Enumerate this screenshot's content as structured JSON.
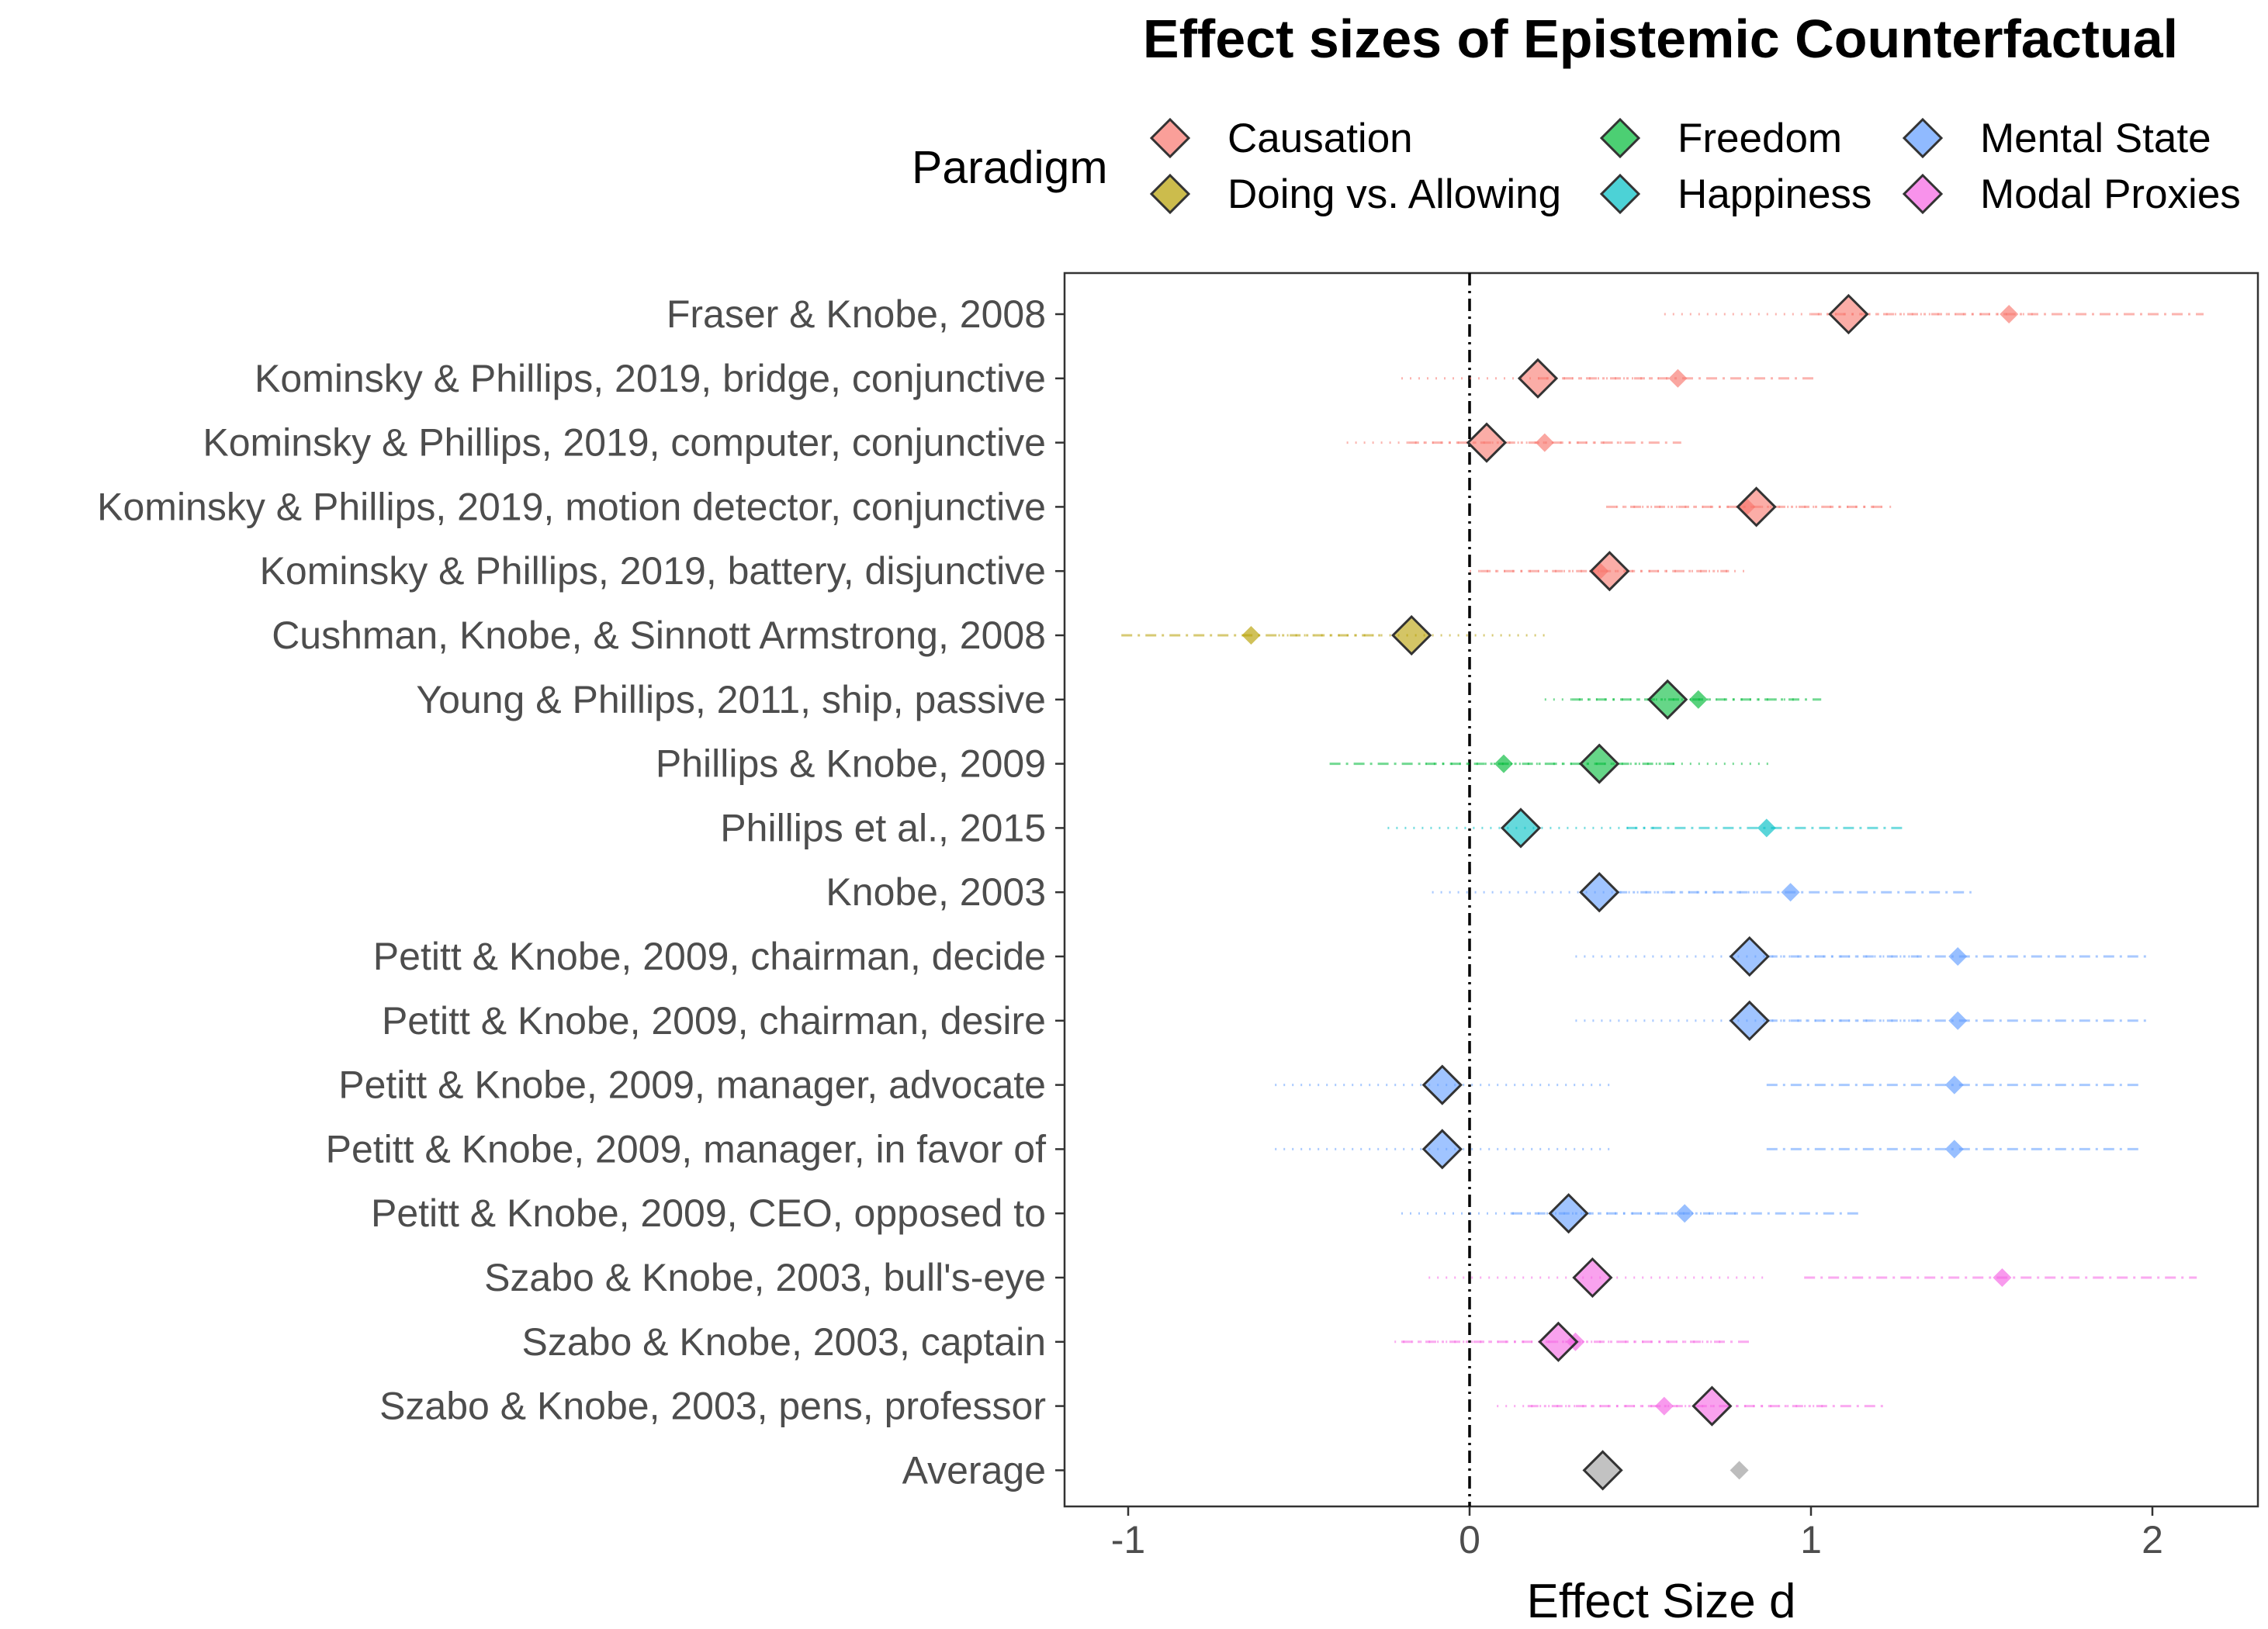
{
  "chart_data": {
    "type": "forest",
    "title": "Effect sizes of Epistemic Counterfactual",
    "xlabel": "Effect Size d",
    "ylabel": "",
    "xlim": [
      -1.15,
      2.3
    ],
    "xticks": [
      -1,
      0,
      1,
      2
    ],
    "xtick_labels": [
      "-1",
      "0",
      "1",
      "2"
    ],
    "reference_line": 0,
    "grid": false,
    "legend": {
      "title": "Paradigm",
      "position": "top",
      "entries": [
        {
          "label": "Causation",
          "color": "#F8766D"
        },
        {
          "label": "Doing vs. Allowing",
          "color": "#B79F00"
        },
        {
          "label": "Freedom",
          "color": "#00BA38"
        },
        {
          "label": "Happiness",
          "color": "#00BFC4"
        },
        {
          "label": "Mental State",
          "color": "#619CFF"
        },
        {
          "label": "Modal Proxies",
          "color": "#F564E3"
        }
      ]
    },
    "marker_legend": {
      "large_outlined_diamond": "epistemic counterfactual estimate (dotted CI)",
      "small_diamond": "comparison estimate (dash-dot CI)"
    },
    "rows": [
      {
        "label": "Fraser & Knobe, 2008",
        "paradigm": "Causation",
        "main": {
          "d": 1.11,
          "ci": [
            0.57,
            1.65
          ]
        },
        "secondary": {
          "d": 1.58,
          "ci": [
            1.0,
            2.15
          ]
        }
      },
      {
        "label": "Kominsky & Phillips, 2019, bridge, conjunctive",
        "paradigm": "Causation",
        "main": {
          "d": 0.2,
          "ci": [
            -0.2,
            0.6
          ]
        },
        "secondary": {
          "d": 0.61,
          "ci": [
            0.2,
            1.01
          ]
        }
      },
      {
        "label": "Kominsky & Phillips, 2019, computer, conjunctive",
        "paradigm": "Causation",
        "main": {
          "d": 0.05,
          "ci": [
            -0.36,
            0.46
          ]
        },
        "secondary": {
          "d": 0.22,
          "ci": [
            -0.18,
            0.62
          ]
        }
      },
      {
        "label": "Kominsky & Phillips, 2019, motion detector, conjunctive",
        "paradigm": "Causation",
        "main": {
          "d": 0.84,
          "ci": [
            0.43,
            1.25
          ]
        },
        "secondary": {
          "d": 0.81,
          "ci": [
            0.4,
            1.22
          ]
        }
      },
      {
        "label": "Kominsky & Phillips, 2019, battery, disjunctive",
        "paradigm": "Causation",
        "main": {
          "d": 0.41,
          "ci": [
            0.0,
            0.81
          ]
        },
        "secondary": {
          "d": 0.38,
          "ci": [
            0.03,
            0.76
          ]
        }
      },
      {
        "label": "Cushman, Knobe, & Sinnott Armstrong, 2008",
        "paradigm": "Doing vs. Allowing",
        "main": {
          "d": -0.17,
          "ci": [
            -0.56,
            0.23
          ]
        },
        "secondary": {
          "d": -0.64,
          "ci": [
            -1.02,
            -0.25
          ]
        }
      },
      {
        "label": "Young & Phillips, 2011, ship, passive",
        "paradigm": "Freedom",
        "main": {
          "d": 0.58,
          "ci": [
            0.22,
            0.95
          ]
        },
        "secondary": {
          "d": 0.67,
          "ci": [
            0.3,
            1.03
          ]
        }
      },
      {
        "label": "Phillips & Knobe, 2009",
        "paradigm": "Freedom",
        "main": {
          "d": 0.38,
          "ci": [
            -0.13,
            0.89
          ]
        },
        "secondary": {
          "d": 0.1,
          "ci": [
            -0.41,
            0.6
          ]
        }
      },
      {
        "label": "Phillips et al., 2015",
        "paradigm": "Happiness",
        "main": {
          "d": 0.15,
          "ci": [
            -0.24,
            0.55
          ]
        },
        "secondary": {
          "d": 0.87,
          "ci": [
            0.46,
            1.28
          ]
        }
      },
      {
        "label": "Knobe, 2003",
        "paradigm": "Mental State",
        "main": {
          "d": 0.38,
          "ci": [
            -0.11,
            0.86
          ]
        },
        "secondary": {
          "d": 0.94,
          "ci": [
            0.43,
            1.47
          ]
        }
      },
      {
        "label": "Petitt & Knobe, 2009, chairman, decide",
        "paradigm": "Mental State",
        "main": {
          "d": 0.82,
          "ci": [
            0.31,
            1.33
          ]
        },
        "secondary": {
          "d": 1.43,
          "ci": [
            0.87,
            1.99
          ]
        }
      },
      {
        "label": "Petitt & Knobe, 2009, chairman, desire",
        "paradigm": "Mental State",
        "main": {
          "d": 0.82,
          "ci": [
            0.31,
            1.33
          ]
        },
        "secondary": {
          "d": 1.43,
          "ci": [
            0.87,
            1.99
          ]
        }
      },
      {
        "label": "Petitt & Knobe, 2009, manager, advocate",
        "paradigm": "Mental State",
        "main": {
          "d": -0.08,
          "ci": [
            -0.57,
            0.42
          ]
        },
        "secondary": {
          "d": 1.42,
          "ci": [
            0.87,
            1.97
          ]
        }
      },
      {
        "label": "Petitt & Knobe, 2009, manager, in favor of",
        "paradigm": "Mental State",
        "main": {
          "d": -0.08,
          "ci": [
            -0.57,
            0.42
          ]
        },
        "secondary": {
          "d": 1.42,
          "ci": [
            0.87,
            1.97
          ]
        }
      },
      {
        "label": "Petitt & Knobe, 2009, CEO, opposed to",
        "paradigm": "Mental State",
        "main": {
          "d": 0.29,
          "ci": [
            -0.2,
            0.78
          ]
        },
        "secondary": {
          "d": 0.63,
          "ci": [
            0.12,
            1.14
          ]
        }
      },
      {
        "label": "Szabo & Knobe, 2003, bull's-eye",
        "paradigm": "Modal Proxies",
        "main": {
          "d": 0.36,
          "ci": [
            -0.12,
            0.87
          ]
        },
        "secondary": {
          "d": 1.56,
          "ci": [
            0.98,
            2.13
          ]
        }
      },
      {
        "label": "Szabo & Knobe, 2003, captain",
        "paradigm": "Modal Proxies",
        "main": {
          "d": 0.26,
          "ci": [
            -0.22,
            0.75
          ]
        },
        "secondary": {
          "d": 0.31,
          "ci": [
            -0.2,
            0.82
          ]
        }
      },
      {
        "label": "Szabo & Knobe, 2003, pens, professor",
        "paradigm": "Modal Proxies",
        "main": {
          "d": 0.71,
          "ci": [
            0.08,
            1.05
          ]
        },
        "secondary": {
          "d": 0.57,
          "ci": [
            0.17,
            1.22
          ]
        }
      },
      {
        "label": "Average",
        "paradigm": "Average",
        "main": {
          "d": 0.39,
          "ci": null
        },
        "secondary": {
          "d": 0.79,
          "ci": null
        }
      }
    ],
    "average_color": "#999999"
  }
}
